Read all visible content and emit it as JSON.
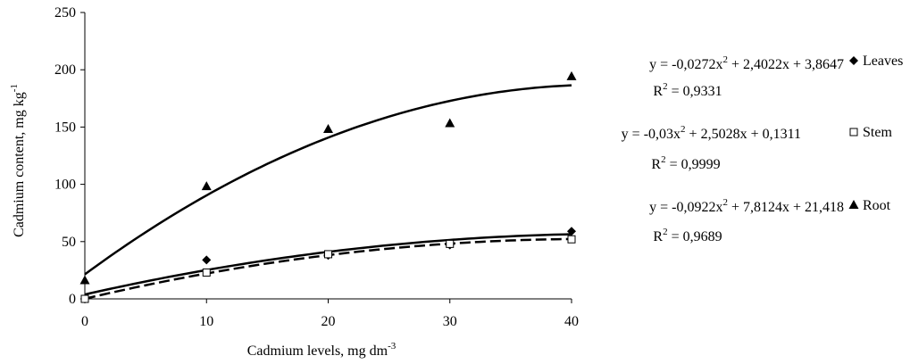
{
  "chart_data": {
    "type": "scatter",
    "x_label": {
      "text": "Cadmium levels, mg dm",
      "superscript": "-3"
    },
    "y_label": {
      "text": "Cadmium content, mg kg",
      "superscript": "-1"
    },
    "x": [
      0,
      10,
      20,
      30,
      40
    ],
    "xlim": [
      0,
      40
    ],
    "xticks": [
      0,
      10,
      20,
      30,
      40
    ],
    "ylim": [
      0,
      250
    ],
    "yticks": [
      0,
      50,
      100,
      150,
      200,
      250
    ],
    "equation_parts": [
      "y = ",
      "x",
      "2",
      " + ",
      "x + "
    ],
    "r2_parts": [
      "R",
      "2",
      " = "
    ],
    "series": [
      {
        "name": "Leaves",
        "color": "#000000",
        "marker": "diamond",
        "dash": false,
        "values": [
          0,
          34,
          38,
          47,
          59
        ],
        "trendline": {
          "coefficients": [
            {
              "value": -0.0272,
              "label": "-0,0272"
            },
            {
              "value": 2.4022,
              "label": "2,4022"
            },
            {
              "value": 3.8647,
              "label": "3,8647"
            }
          ],
          "r2": {
            "value": 0.9331,
            "label": "0,9331"
          }
        }
      },
      {
        "name": "Stem",
        "color": "#000000",
        "marker": "square",
        "dash": true,
        "values": [
          0,
          23,
          39,
          48,
          52
        ],
        "trendline": {
          "coefficients": [
            {
              "value": -0.03,
              "label": "-0,03"
            },
            {
              "value": 2.5028,
              "label": "2,5028"
            },
            {
              "value": 0.1311,
              "label": "0,1311"
            }
          ],
          "r2": {
            "value": 0.9999,
            "label": "0,9999"
          }
        }
      },
      {
        "name": "Root",
        "color": "#000000",
        "marker": "triangle",
        "dash": false,
        "values": [
          16,
          98,
          148,
          153,
          194
        ],
        "trendline": {
          "coefficients": [
            {
              "value": -0.0922,
              "label": "-0,0922"
            },
            {
              "value": 7.8124,
              "label": "7,8124"
            },
            {
              "value": 21.418,
              "label": "21,418"
            }
          ],
          "r2": {
            "value": 0.9689,
            "label": "0,9689"
          }
        }
      }
    ]
  }
}
